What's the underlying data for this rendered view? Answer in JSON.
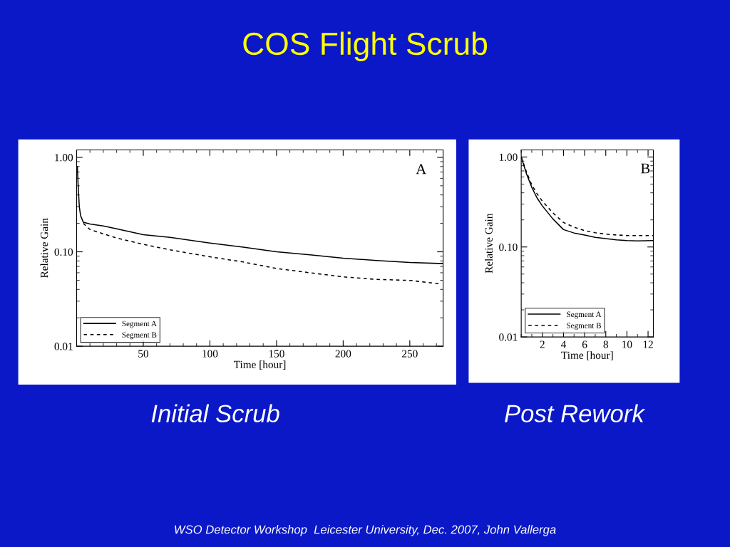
{
  "chart_data": [
    {
      "type": "line",
      "title": "COS Flight Scrub",
      "subtitle": "Initial Scrub",
      "xlabel": "Time [hour]",
      "ylabel": "Relative Gain",
      "log": "y",
      "xlim": [
        0,
        275
      ],
      "xticks": [
        50,
        100,
        150,
        200,
        250
      ],
      "ylim": [
        0.01,
        1.2
      ],
      "yticks": [
        {
          "value": 1,
          "label": "1.00"
        },
        {
          "value": 0.1,
          "label": "0.10"
        },
        {
          "value": 0.01,
          "label": "0.01"
        }
      ],
      "legend": "bottom left",
      "grid": false,
      "annotations": [
        "A",
        "WSO Detector Workshop  Leicester University, Dec. 2007, John Vallerga"
      ],
      "series": [
        {
          "name": "Segment A",
          "color": "#000000",
          "line_style": "solid",
          "x": [
            0.5,
            1,
            2,
            3,
            5,
            10,
            20,
            30,
            50,
            70,
            100,
            125,
            150,
            175,
            200,
            225,
            250,
            275
          ],
          "values": [
            0.8,
            0.55,
            0.3,
            0.24,
            0.206,
            0.197,
            0.188,
            0.175,
            0.152,
            0.142,
            0.124,
            0.112,
            0.1,
            0.093,
            0.0855,
            0.081,
            0.077,
            0.075
          ]
        },
        {
          "name": "Segment B",
          "color": "#000000",
          "line_style": "dashed",
          "x": [
            5,
            10,
            20,
            30,
            50,
            70,
            100,
            125,
            150,
            175,
            200,
            225,
            250,
            272
          ],
          "values": [
            0.2,
            0.172,
            0.155,
            0.14,
            0.12,
            0.105,
            0.0885,
            0.078,
            0.0666,
            0.06,
            0.0543,
            0.051,
            0.0498,
            0.046
          ]
        }
      ]
    },
    {
      "type": "line",
      "subtitle": "Post Rework",
      "xlabel": "Time [hour]",
      "ylabel": "Relative Gain",
      "log": "y",
      "xlim": [
        0,
        12.5
      ],
      "xticks": [
        2,
        4,
        6,
        8,
        10,
        12
      ],
      "ylim": [
        0.01,
        1.2
      ],
      "yticks": [
        {
          "value": 1,
          "label": "1.00"
        },
        {
          "value": 0.1,
          "label": "0.10"
        },
        {
          "value": 0.01,
          "label": "0.01"
        }
      ],
      "legend": "bottom left",
      "grid": false,
      "annotations": [
        "B"
      ],
      "series": [
        {
          "name": "Segment A",
          "color": "#000000",
          "line_style": "solid",
          "x": [
            0,
            0.5,
            1,
            1.5,
            2,
            3,
            4,
            5,
            6,
            7,
            8,
            9,
            10,
            11,
            12.5
          ],
          "values": [
            1.0,
            0.65,
            0.46,
            0.35,
            0.286,
            0.205,
            0.156,
            0.143,
            0.136,
            0.128,
            0.124,
            0.12,
            0.118,
            0.117,
            0.118
          ]
        },
        {
          "name": "Segment B",
          "color": "#000000",
          "line_style": "dashed",
          "x": [
            0,
            0.5,
            1,
            1.5,
            2,
            3,
            4,
            5,
            6,
            7,
            8,
            9,
            10,
            11,
            12.5
          ],
          "values": [
            1.0,
            0.68,
            0.49,
            0.39,
            0.323,
            0.239,
            0.187,
            0.166,
            0.152,
            0.144,
            0.139,
            0.136,
            0.134,
            0.134,
            0.134
          ]
        }
      ]
    }
  ]
}
